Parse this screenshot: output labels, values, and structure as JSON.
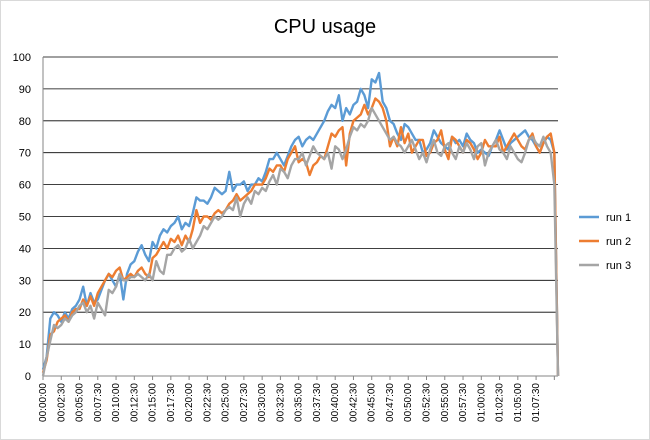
{
  "chart_data": {
    "type": "line",
    "title": "CPU usage",
    "xlabel": "",
    "ylabel": "",
    "ylim": [
      0,
      100
    ],
    "yticks": [
      0,
      10,
      20,
      30,
      40,
      50,
      60,
      70,
      80,
      90,
      100
    ],
    "grid": "horizontal",
    "legend_position": "right",
    "xtick_labels": [
      "00:00:00",
      "00:02:30",
      "00:05:00",
      "00:07:30",
      "00:10:00",
      "00:12:30",
      "00:15:00",
      "00:17:30",
      "00:20:00",
      "00:22:30",
      "00:25:00",
      "00:27:30",
      "00:30:00",
      "00:32:30",
      "00:35:00",
      "00:37:30",
      "00:40:00",
      "00:42:30",
      "00:45:00",
      "00:47:30",
      "00:50:00",
      "00:52:30",
      "00:55:00",
      "00:57:30",
      "01:00:00",
      "01:02:30",
      "01:05:00",
      "01:07:30"
    ],
    "x_interval": "00:00:30",
    "series": [
      {
        "name": "run 1",
        "color": "#5B9BD5",
        "values": [
          2,
          6,
          18,
          20,
          19,
          17,
          20,
          18,
          21,
          22,
          24,
          28,
          22,
          26,
          23,
          24,
          27,
          30,
          32,
          30,
          28,
          32,
          24,
          32,
          35,
          36,
          39,
          41,
          38,
          36,
          42,
          40,
          44,
          46,
          45,
          47,
          48,
          50,
          46,
          48,
          47,
          51,
          56,
          55,
          55,
          54,
          56,
          59,
          58,
          57,
          58,
          64,
          58,
          60,
          60,
          61,
          58,
          60,
          60,
          62,
          61,
          64,
          68,
          68,
          70,
          68,
          66,
          69,
          72,
          74,
          75,
          72,
          74,
          75,
          74,
          76,
          78,
          80,
          83,
          85,
          84,
          88,
          80,
          84,
          82,
          85,
          86,
          90,
          88,
          84,
          93,
          92,
          95,
          86,
          84,
          80,
          79,
          76,
          74,
          79,
          78,
          76,
          74,
          74,
          70,
          71,
          73,
          77,
          75,
          73,
          72,
          71,
          75,
          73,
          74,
          72,
          76,
          74,
          73,
          70,
          71,
          70,
          69,
          72,
          74,
          77,
          74,
          71,
          73,
          74,
          75,
          76,
          77,
          75,
          74,
          72,
          70,
          73,
          75,
          74,
          70,
          0
        ]
      },
      {
        "name": "run 2",
        "color": "#ED7D31",
        "values": [
          1,
          5,
          13,
          14,
          17,
          18,
          19,
          17,
          20,
          21,
          21,
          24,
          22,
          25,
          22,
          26,
          28,
          30,
          32,
          31,
          33,
          34,
          30,
          31,
          32,
          31,
          33,
          34,
          32,
          31,
          37,
          38,
          40,
          42,
          40,
          43,
          42,
          44,
          41,
          44,
          42,
          46,
          52,
          48,
          50,
          50,
          49,
          51,
          52,
          51,
          52,
          54,
          55,
          57,
          55,
          56,
          57,
          58,
          60,
          60,
          60,
          62,
          65,
          64,
          66,
          66,
          64,
          68,
          70,
          72,
          67,
          68,
          67,
          63,
          66,
          67,
          69,
          68,
          72,
          76,
          75,
          77,
          78,
          66,
          76,
          80,
          81,
          82,
          85,
          82,
          84,
          87,
          86,
          84,
          80,
          72,
          75,
          72,
          78,
          73,
          76,
          70,
          72,
          74,
          74,
          69,
          70,
          73,
          74,
          77,
          71,
          68,
          75,
          74,
          72,
          70,
          74,
          73,
          71,
          68,
          70,
          74,
          72,
          72,
          72,
          75,
          70,
          72,
          74,
          76,
          74,
          72,
          71,
          74,
          76,
          72,
          70,
          73,
          75,
          76,
          70,
          0
        ]
      },
      {
        "name": "run 3",
        "color": "#A5A5A5",
        "values": [
          0,
          6,
          11,
          16,
          15,
          16,
          18,
          17,
          19,
          20,
          22,
          23,
          20,
          22,
          18,
          23,
          21,
          19,
          27,
          26,
          28,
          32,
          30,
          30,
          31,
          31,
          32,
          31,
          30,
          32,
          30,
          36,
          33,
          32,
          38,
          38,
          40,
          41,
          39,
          40,
          43,
          40,
          42,
          44,
          47,
          46,
          48,
          50,
          49,
          50,
          52,
          53,
          52,
          56,
          50,
          54,
          56,
          54,
          58,
          57,
          59,
          58,
          61,
          63,
          60,
          65,
          64,
          62,
          66,
          68,
          68,
          70,
          66,
          69,
          72,
          70,
          69,
          68,
          70,
          65,
          72,
          71,
          68,
          71,
          75,
          78,
          77,
          79,
          78,
          80,
          84,
          82,
          80,
          78,
          76,
          74,
          75,
          73,
          72,
          70,
          72,
          74,
          71,
          68,
          70,
          67,
          71,
          74,
          70,
          69,
          72,
          73,
          70,
          68,
          72,
          70,
          73,
          71,
          68,
          72,
          73,
          66,
          70,
          72,
          74,
          71,
          70,
          68,
          72,
          70,
          68,
          67,
          70,
          74,
          75,
          73,
          72,
          75,
          72,
          70,
          60,
          0
        ]
      }
    ]
  }
}
